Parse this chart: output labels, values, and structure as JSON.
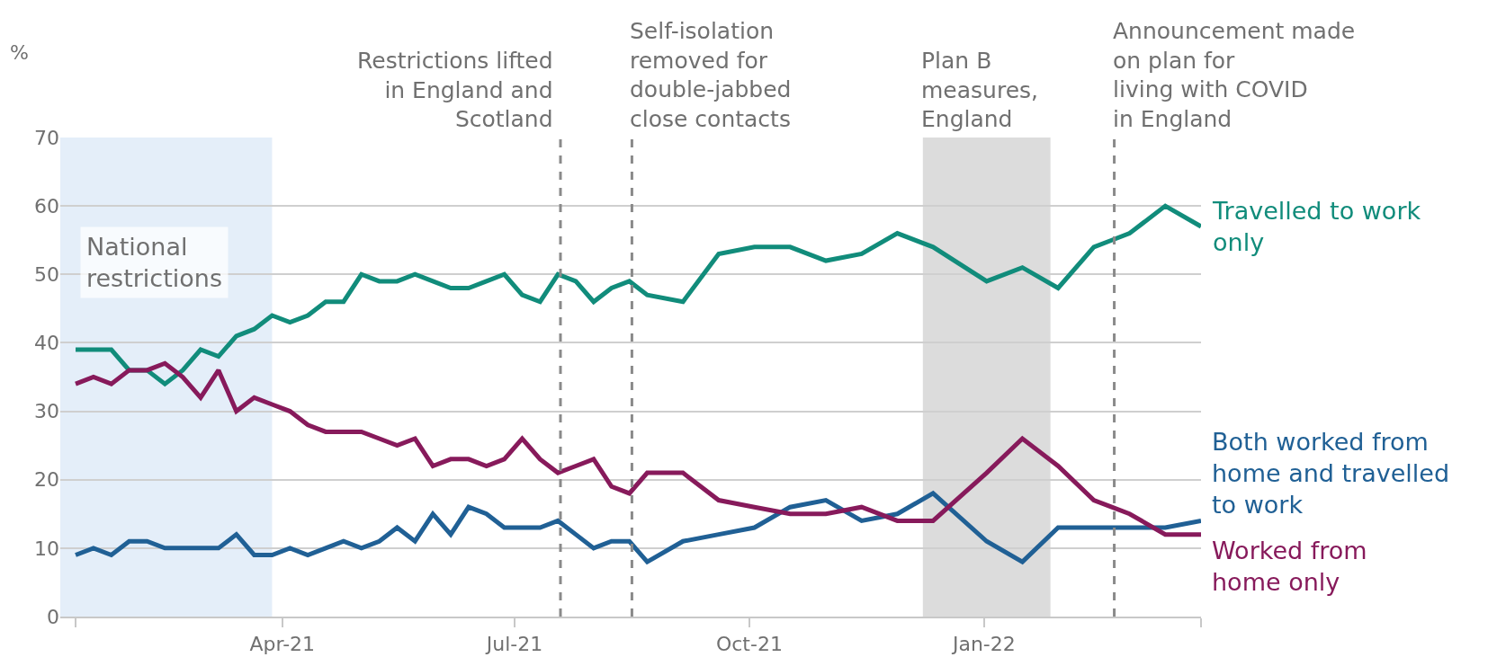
{
  "chart_data": {
    "type": "line",
    "ylabel": "%",
    "x": [
      "2021-01-10",
      "2021-01-17",
      "2021-01-24",
      "2021-01-31",
      "2021-02-07",
      "2021-02-14",
      "2021-02-21",
      "2021-02-28",
      "2021-03-07",
      "2021-03-14",
      "2021-03-21",
      "2021-03-28",
      "2021-04-04",
      "2021-04-11",
      "2021-04-18",
      "2021-04-25",
      "2021-05-02",
      "2021-05-09",
      "2021-05-16",
      "2021-05-23",
      "2021-05-30",
      "2021-06-06",
      "2021-06-13",
      "2021-06-20",
      "2021-06-27",
      "2021-07-04",
      "2021-07-11",
      "2021-07-18",
      "2021-07-25",
      "2021-08-01",
      "2021-08-08",
      "2021-08-15",
      "2021-08-22",
      "2021-09-05",
      "2021-09-19",
      "2021-10-03",
      "2021-10-17",
      "2021-10-31",
      "2021-11-14",
      "2021-11-28",
      "2021-12-12",
      "2022-01-02",
      "2022-01-16",
      "2022-01-30",
      "2022-02-13",
      "2022-02-20",
      "2022-02-27",
      "2022-03-13",
      "2022-03-27"
    ],
    "series": [
      {
        "name": "Travelled to work only",
        "color": "#118c7b",
        "values": [
          39,
          39,
          39,
          36,
          36,
          34,
          36,
          39,
          38,
          41,
          42,
          44,
          43,
          44,
          46,
          46,
          50,
          49,
          49,
          50,
          49,
          48,
          48,
          49,
          50,
          47,
          46,
          50,
          49,
          46,
          48,
          49,
          47,
          46,
          53,
          54,
          54,
          52,
          53,
          56,
          54,
          49,
          51,
          48,
          54,
          55,
          56,
          60,
          57
        ]
      },
      {
        "name": "Both worked from home and travelled to work",
        "color": "#206095",
        "values": [
          9,
          10,
          9,
          11,
          11,
          10,
          10,
          10,
          10,
          12,
          9,
          9,
          10,
          9,
          10,
          11,
          10,
          11,
          13,
          11,
          15,
          12,
          16,
          15,
          13,
          13,
          13,
          14,
          12,
          10,
          11,
          11,
          8,
          11,
          12,
          13,
          16,
          17,
          14,
          15,
          18,
          11,
          8,
          13,
          13,
          13,
          13,
          13,
          14
        ]
      },
      {
        "name": "Worked from home only",
        "color": "#871a5b",
        "values": [
          34,
          35,
          34,
          36,
          36,
          37,
          35,
          32,
          36,
          30,
          32,
          31,
          30,
          28,
          27,
          27,
          27,
          26,
          25,
          26,
          22,
          23,
          23,
          22,
          23,
          26,
          23,
          21,
          22,
          23,
          19,
          18,
          21,
          21,
          17,
          16,
          15,
          15,
          16,
          14,
          14,
          21,
          26,
          22,
          17,
          16,
          15,
          12,
          12
        ]
      }
    ],
    "xlim": [
      "2021-01-04",
      "2022-03-27"
    ],
    "xticks": [
      {
        "value": "2021-01-10",
        "label": null
      },
      {
        "value": "2021-04-01",
        "label": "Apr-21"
      },
      {
        "value": "2021-07-01",
        "label": "Jul-21"
      },
      {
        "value": "2021-10-01",
        "label": "Oct-21"
      },
      {
        "value": "2022-01-01",
        "label": "Jan-22"
      },
      {
        "value": "2022-03-27",
        "label": null
      }
    ],
    "ylim": [
      0,
      70
    ],
    "yticks": [
      0,
      10,
      20,
      30,
      40,
      50,
      60,
      70
    ],
    "grid": "y",
    "legend": false,
    "line_style": "solid",
    "marker": "none",
    "ref_lines": [
      {
        "axis": "x",
        "value": "2021-07-19",
        "label": "Restrictions lifted in England and Scotland",
        "color": "#8a8a8a",
        "line_style": "dashed"
      },
      {
        "axis": "x",
        "value": "2021-08-16",
        "label": "Self-isolation removed for double-jabbed close contacts",
        "color": "#8a8a8a",
        "line_style": "dashed"
      },
      {
        "axis": "x",
        "value": "2022-02-21",
        "label": "Announcement made on plan for living with COVID in England",
        "color": "#8a8a8a",
        "line_style": "dashed"
      }
    ],
    "bands": [
      {
        "axis": "x",
        "from": "2021-01-04",
        "to": "2021-03-28",
        "label": "National restrictions",
        "color": "#e4eef9"
      },
      {
        "axis": "x",
        "from": "2021-12-08",
        "to": "2022-01-27",
        "label": "Plan B measures, England",
        "color": "#dcdcdc"
      }
    ]
  }
}
